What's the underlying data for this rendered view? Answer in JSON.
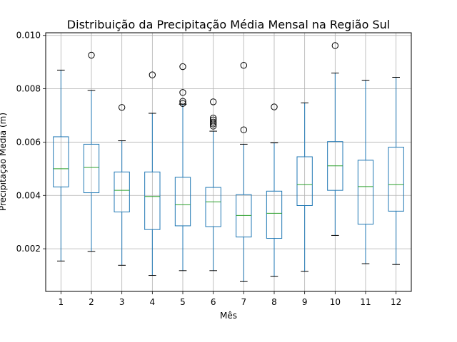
{
  "chart_data": {
    "type": "box",
    "title": "Distribuição da Precipitação Média Mensal na Região Sul",
    "xlabel": "Mês",
    "ylabel": "Precipitação Média (m)",
    "ylim": [
      0.0004,
      0.0101
    ],
    "y_ticks": [
      0.002,
      0.004,
      0.006,
      0.008,
      0.01
    ],
    "y_tick_labels": [
      "0.002",
      "0.004",
      "0.006",
      "0.008",
      "0.010"
    ],
    "grid": true,
    "colors": {
      "box": "#1f77b4",
      "median": "#2ca02c",
      "whisker": "#1f77b4",
      "cap": "#000000",
      "grid": "#b0b0b0"
    },
    "categories": [
      "1",
      "2",
      "3",
      "4",
      "5",
      "6",
      "7",
      "8",
      "9",
      "10",
      "11",
      "12"
    ],
    "boxes": [
      {
        "month": "1",
        "whislo": 0.00154,
        "q1": 0.00432,
        "med": 0.005,
        "q3": 0.0062,
        "whishi": 0.0087,
        "fliers": []
      },
      {
        "month": "2",
        "whislo": 0.0019,
        "q1": 0.0041,
        "med": 0.00505,
        "q3": 0.00592,
        "whishi": 0.00794,
        "fliers": [
          0.00926
        ]
      },
      {
        "month": "3",
        "whislo": 0.00138,
        "q1": 0.00338,
        "med": 0.00419,
        "q3": 0.00488,
        "whishi": 0.00605,
        "fliers": [
          0.0073
        ]
      },
      {
        "month": "4",
        "whislo": 0.001,
        "q1": 0.00272,
        "med": 0.00396,
        "q3": 0.00488,
        "whishi": 0.00708,
        "fliers": [
          0.00852
        ]
      },
      {
        "month": "5",
        "whislo": 0.00118,
        "q1": 0.00286,
        "med": 0.00365,
        "q3": 0.00468,
        "whishi": 0.00742,
        "fliers": [
          0.00883,
          0.00786,
          0.00753,
          0.00745
        ]
      },
      {
        "month": "6",
        "whislo": 0.00118,
        "q1": 0.00283,
        "med": 0.00376,
        "q3": 0.0043,
        "whishi": 0.00641,
        "fliers": [
          0.00751,
          0.0069,
          0.00683,
          0.00675,
          0.00668,
          0.0066
        ]
      },
      {
        "month": "7",
        "whislo": 0.00077,
        "q1": 0.00244,
        "med": 0.00325,
        "q3": 0.00403,
        "whishi": 0.00592,
        "fliers": [
          0.00888,
          0.00646
        ]
      },
      {
        "month": "8",
        "whislo": 0.00096,
        "q1": 0.00239,
        "med": 0.00333,
        "q3": 0.00416,
        "whishi": 0.00597,
        "fliers": [
          0.00732
        ]
      },
      {
        "month": "9",
        "whislo": 0.00115,
        "q1": 0.00362,
        "med": 0.00441,
        "q3": 0.00545,
        "whishi": 0.00747,
        "fliers": []
      },
      {
        "month": "10",
        "whislo": 0.0025,
        "q1": 0.00419,
        "med": 0.00511,
        "q3": 0.00602,
        "whishi": 0.00859,
        "fliers": [
          0.00962
        ]
      },
      {
        "month": "11",
        "whislo": 0.00144,
        "q1": 0.00292,
        "med": 0.00433,
        "q3": 0.00532,
        "whishi": 0.00832,
        "fliers": []
      },
      {
        "month": "12",
        "whislo": 0.00141,
        "q1": 0.00341,
        "med": 0.00441,
        "q3": 0.00581,
        "whishi": 0.00843,
        "fliers": []
      }
    ]
  }
}
